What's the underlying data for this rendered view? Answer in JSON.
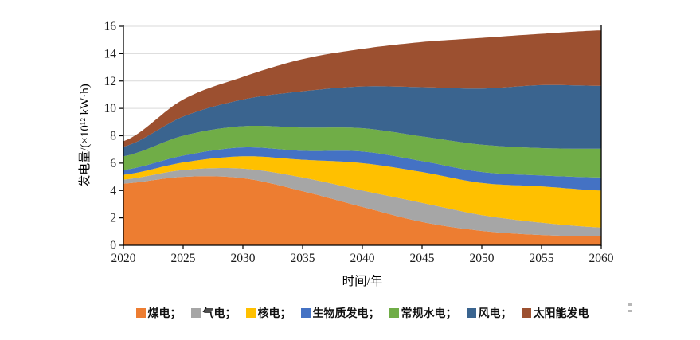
{
  "figure": {
    "background": "#ffffff"
  },
  "chart_data": {
    "type": "area",
    "stacked": true,
    "title": "",
    "xlabel": "时间/年",
    "ylabel": "发电量/(×10¹² kW·h)",
    "categories": [
      2020,
      2025,
      2030,
      2035,
      2040,
      2045,
      2050,
      2055,
      2060
    ],
    "x_tick_labels": [
      "2020",
      "2025",
      "2030",
      "2035",
      "2040",
      "2045",
      "2050",
      "2055",
      "2060"
    ],
    "y_tick_labels": [
      "0",
      "2",
      "4",
      "6",
      "8",
      "10",
      "12",
      "14",
      "16"
    ],
    "ylim": [
      0,
      16
    ],
    "ytick_step": 2,
    "grid": true,
    "legend_position": "bottom",
    "series": [
      {
        "id": "coal",
        "name": "煤电",
        "color": "#ED7D31",
        "values": [
          4.5,
          5.0,
          4.9,
          3.95,
          2.8,
          1.7,
          1.05,
          0.75,
          0.65
        ]
      },
      {
        "id": "gas",
        "name": "气电",
        "color": "#A6A6A6",
        "values": [
          0.3,
          0.5,
          0.7,
          1.0,
          1.2,
          1.4,
          1.15,
          0.9,
          0.65
        ]
      },
      {
        "id": "nuclear",
        "name": "核电",
        "color": "#FFC000",
        "values": [
          0.35,
          0.55,
          0.9,
          1.3,
          2.0,
          2.25,
          2.35,
          2.65,
          2.7
        ]
      },
      {
        "id": "biomass",
        "name": "生物质发电",
        "color": "#4472C4",
        "values": [
          0.35,
          0.5,
          0.65,
          0.65,
          0.85,
          0.8,
          0.8,
          0.8,
          0.95
        ]
      },
      {
        "id": "hydro",
        "name": "常规水电",
        "color": "#70AD47",
        "values": [
          1.0,
          1.45,
          1.55,
          1.7,
          1.7,
          1.8,
          2.0,
          2.0,
          2.1
        ]
      },
      {
        "id": "wind",
        "name": "风电",
        "color": "#3A648F",
        "values": [
          0.7,
          1.4,
          1.95,
          2.65,
          3.05,
          3.6,
          4.1,
          4.6,
          4.6
        ]
      },
      {
        "id": "solar",
        "name": "太阳能发电",
        "color": "#9C5030",
        "values": [
          0.4,
          1.25,
          1.65,
          2.35,
          2.75,
          3.3,
          3.7,
          3.75,
          4.05
        ]
      }
    ]
  },
  "legend": {
    "items": [
      {
        "label": "煤电；",
        "color": "#ED7D31"
      },
      {
        "label": "气电；",
        "color": "#A6A6A6"
      },
      {
        "label": "核电；",
        "color": "#FFC000"
      },
      {
        "label": "生物质发电；",
        "color": "#4472C4"
      },
      {
        "label": "常规水电；",
        "color": "#70AD47"
      },
      {
        "label": "风电；",
        "color": "#3A648F"
      },
      {
        "label": "太阳能发电",
        "color": "#9C5030"
      }
    ]
  },
  "colors": {
    "grid": "#D9D9D9",
    "axis": "#000000",
    "tick_text": "#1a1a1a"
  }
}
